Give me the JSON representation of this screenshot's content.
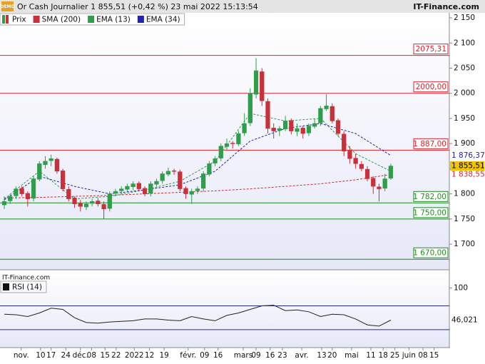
{
  "chart_data": {
    "type": "candlestick",
    "logo": "DEMO",
    "title": "Or Cash Journalier 1 855,51 (+0,42 %) 23 mai 2022 15:13:54",
    "source": "IT-Finance.com",
    "watermark": "IT-Finance.com",
    "xlim": [
      -0.73,
      76.0
    ],
    "xticks": [
      {
        "value": 2.9,
        "label": "nov."
      },
      {
        "value": 6.2,
        "label": "10"
      },
      {
        "value": 8.0,
        "label": "17"
      },
      {
        "value": 10.5,
        "label": "24"
      },
      {
        "value": 13.0,
        "label": "déc."
      },
      {
        "value": 14.9,
        "label": "08"
      },
      {
        "value": 17.2,
        "label": "15"
      },
      {
        "value": 19.1,
        "label": "22"
      },
      {
        "value": 22.2,
        "label": "2022"
      },
      {
        "value": 24.8,
        "label": "12"
      },
      {
        "value": 27.3,
        "label": "19"
      },
      {
        "value": 31.4,
        "label": "févr."
      },
      {
        "value": 34.2,
        "label": "09"
      },
      {
        "value": 36.5,
        "label": "16"
      },
      {
        "value": 40.8,
        "label": "mars"
      },
      {
        "value": 43.0,
        "label": "09"
      },
      {
        "value": 45.4,
        "label": "16"
      },
      {
        "value": 47.5,
        "label": "23"
      },
      {
        "value": 50.8,
        "label": "avr."
      },
      {
        "value": 54.2,
        "label": "13"
      },
      {
        "value": 56.0,
        "label": "20"
      },
      {
        "value": 59.3,
        "label": "mai"
      },
      {
        "value": 62.6,
        "label": "11"
      },
      {
        "value": 64.7,
        "label": "18"
      },
      {
        "value": 66.7,
        "label": "25"
      },
      {
        "value": 69.1,
        "label": "juin"
      },
      {
        "value": 71.5,
        "label": "08"
      },
      {
        "value": 73.4,
        "label": "15"
      }
    ],
    "ylim": [
      1649,
      2160
    ],
    "yticks": [
      {
        "value": 2150,
        "label": "2 150"
      },
      {
        "value": 2100,
        "label": "2 100"
      },
      {
        "value": 2050,
        "label": "2 050"
      },
      {
        "value": 2000,
        "label": "2 000"
      },
      {
        "value": 1950,
        "label": "1 950"
      },
      {
        "value": 1900,
        "label": "1 900"
      },
      {
        "value": 1850,
        "label": "1 850"
      },
      {
        "value": 1800,
        "label": "1 800"
      },
      {
        "value": 1750,
        "label": "1 750"
      },
      {
        "value": 1700,
        "label": "1 700"
      }
    ],
    "candles": {
      "name": "Prix",
      "up_color": "#2f9e4a",
      "down_color": "#c9303a",
      "open": [
        1778,
        1786,
        1796,
        1811,
        1801,
        1791,
        1829,
        1858,
        1866,
        1869,
        1846,
        1809,
        1792,
        1781,
        1774,
        1781,
        1786,
        1779,
        1771,
        1801,
        1806,
        1809,
        1814,
        1821,
        1811,
        1801,
        1819,
        1826,
        1839,
        1846,
        1844,
        1811,
        1799,
        1806,
        1811,
        1839,
        1861,
        1871,
        1894,
        1901,
        1899,
        1921,
        1941,
        1998,
        2043,
        1984,
        1931,
        1926,
        1929,
        1946,
        1924,
        1931,
        1921,
        1934,
        1941,
        1969,
        1974,
        1946,
        1919,
        1886,
        1871,
        1859,
        1849,
        1831,
        1814,
        1811,
        1831
      ],
      "high": [
        1795,
        1800,
        1815,
        1815,
        1805,
        1835,
        1865,
        1875,
        1878,
        1872,
        1850,
        1815,
        1795,
        1788,
        1785,
        1790,
        1792,
        1785,
        1805,
        1810,
        1815,
        1820,
        1825,
        1825,
        1815,
        1825,
        1830,
        1845,
        1852,
        1850,
        1848,
        1815,
        1810,
        1815,
        1845,
        1865,
        1875,
        1900,
        1910,
        1905,
        1925,
        1960,
        2010,
        2070,
        2050,
        1990,
        1940,
        1935,
        1955,
        1950,
        1940,
        1935,
        1940,
        1950,
        1975,
        1998,
        1980,
        1950,
        1925,
        1895,
        1880,
        1865,
        1855,
        1835,
        1820,
        1840,
        1860
      ],
      "low": [
        1770,
        1780,
        1790,
        1795,
        1775,
        1785,
        1825,
        1850,
        1855,
        1840,
        1805,
        1785,
        1772,
        1765,
        1768,
        1775,
        1775,
        1750,
        1765,
        1795,
        1800,
        1805,
        1808,
        1805,
        1795,
        1795,
        1815,
        1820,
        1835,
        1838,
        1805,
        1790,
        1780,
        1800,
        1805,
        1835,
        1855,
        1865,
        1888,
        1890,
        1895,
        1915,
        1935,
        1990,
        1975,
        1920,
        1910,
        1915,
        1925,
        1918,
        1915,
        1910,
        1915,
        1930,
        1935,
        1965,
        1940,
        1915,
        1875,
        1860,
        1850,
        1845,
        1825,
        1800,
        1785,
        1805,
        1828
      ],
      "close": [
        1785,
        1795,
        1810,
        1800,
        1790,
        1830,
        1860,
        1865,
        1870,
        1845,
        1810,
        1790,
        1780,
        1775,
        1780,
        1785,
        1780,
        1770,
        1800,
        1805,
        1810,
        1815,
        1820,
        1810,
        1800,
        1820,
        1825,
        1840,
        1845,
        1845,
        1810,
        1800,
        1805,
        1810,
        1840,
        1860,
        1870,
        1895,
        1900,
        1900,
        1920,
        1940,
        2000,
        2045,
        1985,
        1930,
        1925,
        1930,
        1945,
        1925,
        1930,
        1920,
        1935,
        1940,
        1970,
        1975,
        1945,
        1920,
        1885,
        1870,
        1860,
        1850,
        1830,
        1815,
        1810,
        1830,
        1855.51
      ],
      "last_label": "1 855,51",
      "label_color": "#f2c200"
    },
    "series": [
      {
        "name": "SMA (200)",
        "color": "#c9303a",
        "x": [
          0,
          6,
          12,
          18,
          24,
          30,
          36,
          42,
          48,
          54,
          60,
          66
        ],
        "values": [
          1792,
          1793,
          1795,
          1797,
          1800,
          1803,
          1806,
          1810,
          1815,
          1820,
          1828,
          1838.55
        ],
        "last_label": "1 838,55"
      },
      {
        "name": "EMA (13)",
        "color": "#2f9e4a",
        "x": [
          0,
          6,
          12,
          18,
          24,
          30,
          36,
          42,
          48,
          54,
          60,
          66
        ],
        "values": [
          1790,
          1845,
          1790,
          1795,
          1808,
          1825,
          1865,
          1960,
          1945,
          1950,
          1880,
          1845
        ]
      },
      {
        "name": "EMA (34)",
        "color": "#2323b0",
        "x": [
          0,
          6,
          12,
          18,
          24,
          30,
          36,
          42,
          48,
          54,
          60,
          66
        ],
        "values": [
          1788,
          1835,
          1815,
          1800,
          1808,
          1818,
          1845,
          1905,
          1930,
          1940,
          1920,
          1876.37
        ],
        "last_label": "1 876,37"
      }
    ],
    "levels": [
      {
        "value": 2075.31,
        "label": "2075,31",
        "color": "#e0202a"
      },
      {
        "value": 2000.0,
        "label": "2000,00",
        "color": "#e0202a"
      },
      {
        "value": 1887.0,
        "label": "1 887,00",
        "color": "#e0202a"
      },
      {
        "value": 1782.0,
        "label": "1 782,00",
        "color": "#1e8c1e"
      },
      {
        "value": 1750.0,
        "label": "1 750,00",
        "color": "#1e8c1e"
      },
      {
        "value": 1670.0,
        "label": "1 670,00",
        "color": "#1e8c1e"
      }
    ],
    "rsi": {
      "name": "RSI (14)",
      "type": "line",
      "color": "#222",
      "x": [
        0,
        2,
        4,
        6,
        8,
        10,
        12,
        14,
        16,
        18,
        20,
        22,
        24,
        26,
        28,
        30,
        32,
        34,
        36,
        38,
        40,
        42,
        44,
        46,
        48,
        50,
        52,
        54,
        56,
        58,
        60,
        62,
        64,
        66
      ],
      "values": [
        56,
        55,
        52,
        58,
        66,
        64,
        50,
        42,
        41,
        43,
        44,
        45,
        48,
        48,
        46,
        45,
        52,
        48,
        45,
        54,
        58,
        64,
        70,
        71,
        62,
        63,
        60,
        52,
        56,
        55,
        48,
        38,
        36,
        46.021
      ],
      "last_label": "46,021",
      "ylim": [
        0,
        128
      ],
      "yticks": [
        100
      ],
      "levels": [
        70,
        30
      ],
      "level_color": "#2a2a90"
    }
  }
}
